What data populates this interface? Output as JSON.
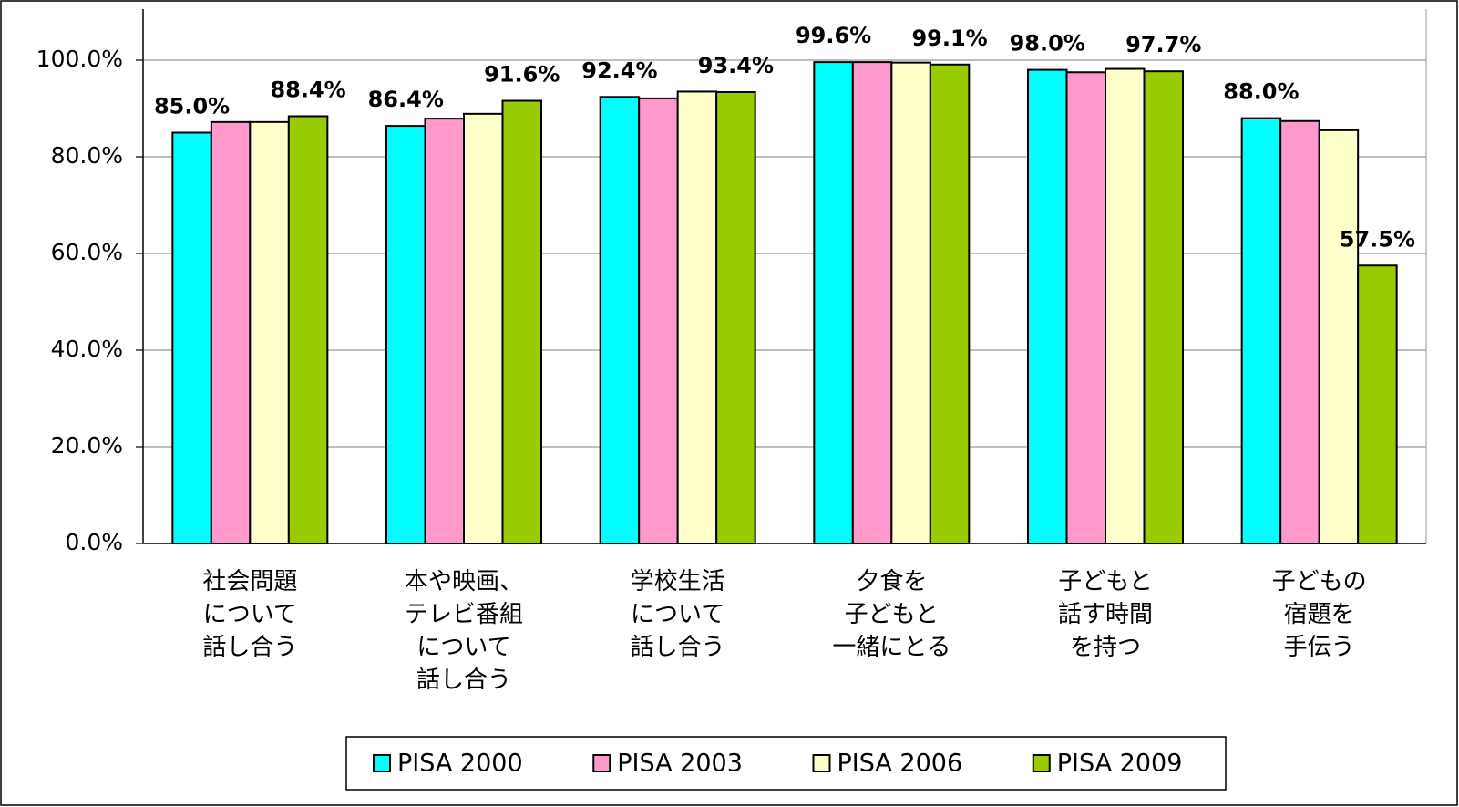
{
  "chart_data": {
    "type": "bar",
    "categories": [
      "社会問題\nについて\n話し合う",
      "本や映画、\nテレビ番組\nについて\n話し合う",
      "学校生活\nについて\n話し合う",
      "夕食を\n子どもと\n一緒にとる",
      "子どもと\n話す時間\nを持つ",
      "子どもの\n宿題を\n手伝う"
    ],
    "series": [
      {
        "name": "PISA 2000",
        "color": "#00ffff",
        "values": [
          85.0,
          86.4,
          92.4,
          99.6,
          98.0,
          88.0
        ],
        "value_labels": [
          "85.0%",
          "86.4%",
          "92.4%",
          "99.6%",
          "98.0%",
          "88.0%"
        ]
      },
      {
        "name": "PISA 2003",
        "color": "#ff99cc",
        "values": [
          87.2,
          87.9,
          92.1,
          99.6,
          97.5,
          87.4
        ],
        "value_labels": [
          null,
          null,
          null,
          null,
          null,
          null
        ]
      },
      {
        "name": "PISA 2006",
        "color": "#ffffcc",
        "values": [
          87.2,
          88.9,
          93.5,
          99.5,
          98.2,
          85.5
        ],
        "value_labels": [
          null,
          null,
          null,
          null,
          null,
          null
        ]
      },
      {
        "name": "PISA 2009",
        "color": "#99cc00",
        "values": [
          88.4,
          91.6,
          93.4,
          99.1,
          97.7,
          57.5
        ],
        "value_labels": [
          "88.4%",
          "91.6%",
          "93.4%",
          "99.1%",
          "97.7%",
          "57.5%"
        ]
      }
    ],
    "ylim": [
      0,
      100
    ],
    "yticks": [
      {
        "value": 0,
        "label": "0.0%"
      },
      {
        "value": 20,
        "label": "20.0%"
      },
      {
        "value": 40,
        "label": "40.0%"
      },
      {
        "value": 60,
        "label": "60.0%"
      },
      {
        "value": 80,
        "label": "80.0%"
      },
      {
        "value": 100,
        "label": "100.0%"
      }
    ],
    "grid": true,
    "legend": "bottom"
  }
}
